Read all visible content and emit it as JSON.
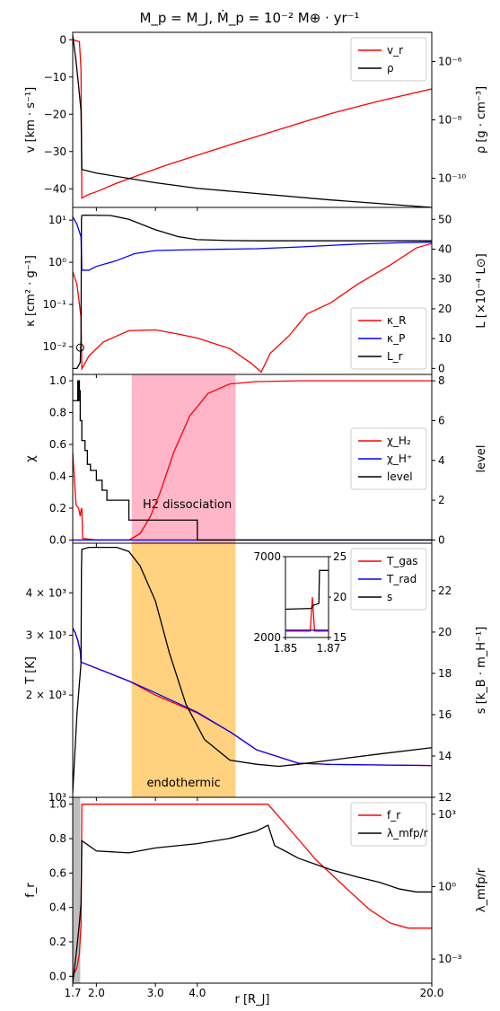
{
  "figure": {
    "title": "M_p = M_J, Ṁ_p = 10⁻² M⊕ · yr⁻¹",
    "shared_xlabel": "r [R_J]",
    "x_ticks": [
      "1.7",
      "2.0",
      "3.0",
      "4.0",
      "20.0"
    ]
  },
  "chart_data": [
    {
      "type": "line",
      "panel": 1,
      "x_scale": "log",
      "xlim": [
        1.7,
        20.0
      ],
      "ylabel": "v [km · s⁻¹]",
      "ylim": [
        -45,
        2
      ],
      "y_ticks": [
        "0",
        "−10",
        "−20",
        "−30",
        "−40"
      ],
      "y2label": "ρ [g · cm⁻³]",
      "y2_scale": "log",
      "y2lim": [
        1e-11,
        1e-05
      ],
      "y2_ticks": [
        "10⁻⁶",
        "10⁻⁸",
        "10⁻¹⁰"
      ],
      "legend": "top-right",
      "series": [
        {
          "name": "v_r",
          "color": "#ff0000",
          "axis": "left",
          "x": [
            1.7,
            1.78,
            1.8,
            1.81,
            1.85,
            1.9,
            2.0,
            2.3,
            2.7,
            3.2,
            4.0,
            5.0,
            6.0,
            8.0,
            10.0,
            14.0,
            20.0
          ],
          "y": [
            0.0,
            -0.5,
            -8.0,
            -42.5,
            -42.0,
            -41.5,
            -40.8,
            -38.5,
            -36.2,
            -33.8,
            -31.0,
            -28.2,
            -26.0,
            -22.5,
            -19.8,
            -16.4,
            -13.2
          ]
        },
        {
          "name": "ρ",
          "color": "#000000",
          "axis": "right",
          "x": [
            1.7,
            1.74,
            1.77,
            1.8,
            1.805,
            1.81,
            2.0,
            3.0,
            4.0,
            6.0,
            10.0,
            20.0
          ],
          "y": [
            8e-06,
            1e-06,
            1.5e-07,
            2e-08,
            2e-09,
            2e-10,
            1.5e-10,
            7e-11,
            4.5e-11,
            3e-11,
            1.8e-11,
            1e-11
          ]
        }
      ]
    },
    {
      "type": "line",
      "panel": 2,
      "x_scale": "log",
      "xlim": [
        1.7,
        20.0
      ],
      "ylabel": "κ [cm² · g⁻¹]",
      "y_scale": "log",
      "ylim": [
        0.0022,
        20
      ],
      "y_ticks": [
        "10¹",
        "10⁰",
        "10⁻¹",
        "10⁻²"
      ],
      "y2label": "L [×10⁻⁴ L⊙]",
      "y2lim": [
        -2,
        54
      ],
      "y2_ticks": [
        "0",
        "10",
        "20",
        "30",
        "40",
        "50"
      ],
      "legend": "bottom-right",
      "series": [
        {
          "name": "κ_R",
          "color": "#ff0000",
          "axis": "left",
          "x": [
            1.7,
            1.75,
            1.8,
            1.81,
            1.9,
            2.1,
            2.5,
            3.0,
            3.5,
            4.0,
            5.0,
            5.8,
            6.2,
            6.6,
            7.5,
            8.5,
            10.0,
            12.0,
            15.0,
            18.0,
            20.0
          ],
          "y": [
            0.6,
            0.3,
            0.05,
            0.003,
            0.006,
            0.013,
            0.024,
            0.025,
            0.02,
            0.016,
            0.009,
            0.004,
            0.0025,
            0.007,
            0.018,
            0.06,
            0.11,
            0.3,
            0.85,
            2.2,
            2.8
          ]
        },
        {
          "name": "κ_P",
          "color": "#0000ff",
          "axis": "left",
          "x": [
            1.7,
            1.75,
            1.8,
            1.81,
            1.9,
            2.0,
            2.3,
            2.6,
            3.0,
            4.0,
            6.0,
            8.0,
            12.0,
            16.0,
            20.0
          ],
          "y": [
            12.0,
            8.0,
            4.0,
            0.65,
            0.65,
            0.8,
            1.1,
            1.6,
            1.9,
            2.0,
            2.1,
            2.3,
            2.7,
            2.9,
            3.0
          ]
        },
        {
          "name": "L_r",
          "color": "#000000",
          "axis": "right",
          "x": [
            1.7,
            1.75,
            1.79,
            1.8,
            1.805,
            1.81,
            1.85,
            2.2,
            2.5,
            3.0,
            3.5,
            4.0,
            5.0,
            6.0,
            10.0,
            20.0
          ],
          "y": [
            0.0,
            0.0,
            2.0,
            10.0,
            50.0,
            51.3,
            51.4,
            51.3,
            50.0,
            46.5,
            44.2,
            43.2,
            42.9,
            42.8,
            42.8,
            42.8
          ]
        }
      ],
      "marker": {
        "x": 1.79,
        "y": 0.0095,
        "shape": "open-circle"
      }
    },
    {
      "type": "line",
      "panel": 3,
      "x_scale": "log",
      "xlim": [
        1.7,
        20.0
      ],
      "ylabel": "χ",
      "ylim": [
        -0.02,
        1.04
      ],
      "y_ticks": [
        "0.0",
        "0.2",
        "0.4",
        "0.6",
        "0.8",
        "1.0"
      ],
      "y2label": "level",
      "y2lim": [
        -0.16,
        8.32
      ],
      "y2_ticks": [
        "0",
        "2",
        "4",
        "6",
        "8"
      ],
      "shaded_region": {
        "x_range": [
          2.55,
          5.2
        ],
        "color": "#ffb6c8",
        "label": "H2 dissociation"
      },
      "legend": "center-right",
      "series": [
        {
          "name": "χ_H₂",
          "color": "#ff0000",
          "axis": "left",
          "x": [
            1.7,
            1.74,
            1.77,
            1.79,
            1.8,
            1.81,
            1.82,
            2.0,
            2.5,
            2.7,
            2.9,
            3.1,
            3.4,
            3.8,
            4.3,
            5.0,
            6.0,
            8.0,
            20.0
          ],
          "y": [
            0.55,
            0.22,
            0.2,
            0.15,
            0.19,
            0.2,
            0.01,
            0.0,
            0.0,
            0.04,
            0.15,
            0.3,
            0.55,
            0.78,
            0.92,
            0.98,
            0.995,
            1.0,
            1.0
          ]
        },
        {
          "name": "χ_H⁺",
          "color": "#0000ff",
          "axis": "left",
          "x": [
            1.7,
            20.0
          ],
          "y": [
            0.0,
            0.0
          ]
        },
        {
          "name": "level",
          "color": "#000000",
          "axis": "right",
          "step": true,
          "x": [
            1.7,
            1.75,
            1.76,
            1.77,
            1.775,
            1.78,
            1.79,
            1.81,
            1.85,
            1.88,
            1.92,
            2.0,
            2.08,
            2.15,
            2.3,
            2.5,
            3.0,
            4.0,
            4.5,
            20.0
          ],
          "y": [
            7.0,
            7.0,
            8.0,
            7.0,
            8.0,
            7.5,
            6.0,
            5.0,
            4.5,
            3.8,
            3.5,
            3.0,
            2.5,
            2.0,
            2.0,
            1.0,
            1.0,
            0.0,
            0.0,
            0.0
          ]
        }
      ]
    },
    {
      "type": "line",
      "panel": 4,
      "x_scale": "log",
      "xlim": [
        1.7,
        20.0
      ],
      "ylabel": "T [K]",
      "y_scale": "log",
      "ylim": [
        1000,
        5600
      ],
      "y_ticks": [
        "4 × 10³",
        "3 × 10³",
        "2 × 10³",
        "10³"
      ],
      "y2label": "s [k_B · m_H⁻¹]",
      "y2lim": [
        12,
        24.3
      ],
      "y2_ticks": [
        "12",
        "14",
        "16",
        "18",
        "20",
        "22"
      ],
      "shaded_region": {
        "x_range": [
          2.55,
          5.2
        ],
        "color": "#ffd27f",
        "label": "endothermic"
      },
      "legend": "top-right",
      "series": [
        {
          "name": "T_gas",
          "color": "#ff0000",
          "axis": "left",
          "x": [
            1.7,
            1.73,
            1.76,
            1.79,
            1.8,
            2.0,
            2.5,
            3.0,
            4.0,
            5.0,
            6.0,
            8.0,
            10.0,
            14.0,
            20.0
          ],
          "y": [
            3150,
            3050,
            2900,
            2700,
            2500,
            2400,
            2200,
            2000,
            1770,
            1560,
            1380,
            1260,
            1250,
            1245,
            1240
          ]
        },
        {
          "name": "T_rad",
          "color": "#0000ff",
          "axis": "left",
          "x": [
            1.7,
            1.73,
            1.76,
            1.79,
            1.8,
            2.0,
            2.5,
            3.0,
            4.0,
            5.0,
            6.0,
            8.0,
            10.0,
            14.0,
            20.0
          ],
          "y": [
            3150,
            3050,
            2900,
            2700,
            2500,
            2400,
            2200,
            2030,
            1780,
            1560,
            1380,
            1260,
            1250,
            1245,
            1240
          ]
        },
        {
          "name": "s",
          "color": "#000000",
          "axis": "right",
          "x": [
            1.7,
            1.75,
            1.79,
            1.8,
            1.805,
            1.81,
            1.9,
            2.3,
            2.5,
            2.7,
            3.0,
            3.3,
            3.7,
            4.2,
            5.0,
            6.0,
            7.0,
            8.0,
            10.0,
            14.0,
            20.0
          ],
          "y": [
            12.2,
            16.0,
            18.0,
            18.5,
            23.0,
            24.0,
            24.1,
            24.1,
            23.9,
            23.2,
            21.5,
            19.0,
            16.5,
            14.8,
            13.8,
            13.6,
            13.5,
            13.6,
            13.8,
            14.1,
            14.4
          ]
        }
      ],
      "inset": {
        "xlim": [
          1.85,
          1.87
        ],
        "x_ticks": [
          "1.85",
          "1.87"
        ],
        "ylim": [
          2000,
          7000
        ],
        "y_ticks": [
          "7000",
          "2000"
        ],
        "y2lim": [
          15,
          25
        ],
        "y2_ticks": [
          "25",
          "20",
          "15"
        ],
        "series": [
          {
            "name": "T_gas",
            "color": "#ff0000",
            "x": [
              1.85,
              1.8615,
              1.8625,
              1.8635,
              1.87
            ],
            "y": [
              2400,
              2400,
              4500,
              2400,
              2400
            ]
          },
          {
            "name": "T_rad",
            "color": "#0000ff",
            "x": [
              1.85,
              1.87
            ],
            "y": [
              2450,
              2450
            ]
          },
          {
            "name": "s",
            "color": "#000000",
            "x": [
              1.85,
              1.862,
              1.863,
              1.8655,
              1.8658,
              1.87
            ],
            "y": [
              18.5,
              18.6,
              19.0,
              19.2,
              23.3,
              23.3
            ]
          }
        ]
      }
    },
    {
      "type": "line",
      "panel": 5,
      "x_scale": "log",
      "xlim": [
        1.7,
        20.0
      ],
      "xlabel": "r [R_J]",
      "ylabel": "f_r",
      "ylim": [
        -0.04,
        1.04
      ],
      "y_ticks": [
        "0.0",
        "0.2",
        "0.4",
        "0.6",
        "0.8",
        "1.0"
      ],
      "y2label": "λ_mfp/r",
      "y2_scale": "log",
      "y2lim": [
        0.0001,
        5000.0
      ],
      "y2_ticks": [
        "10³",
        "10⁰",
        "10⁻³"
      ],
      "shaded_region": {
        "x_range": [
          1.7,
          1.79
        ],
        "color": "#bdbdbd"
      },
      "legend": "top-right",
      "series": [
        {
          "name": "f_r",
          "color": "#ff0000",
          "axis": "left",
          "x": [
            1.7,
            1.75,
            1.78,
            1.8,
            1.81,
            2.0,
            4.0,
            6.5,
            6.7,
            7.5,
            9.0,
            11.0,
            13.0,
            15.0,
            17.0,
            20.0
          ],
          "y": [
            0.0,
            0.05,
            0.13,
            0.3,
            1.0,
            1.0,
            1.0,
            1.0,
            0.97,
            0.86,
            0.68,
            0.52,
            0.39,
            0.31,
            0.28,
            0.28
          ]
        },
        {
          "name": "λ_mfp/r",
          "color": "#000000",
          "axis": "right",
          "x": [
            1.7,
            1.75,
            1.78,
            1.8,
            1.81,
            2.0,
            2.5,
            3.0,
            4.0,
            5.0,
            6.0,
            6.5,
            6.8,
            7.3,
            8.0,
            10.0,
            12.0,
            14.0,
            16.0,
            18.0,
            20.0
          ],
          "y": [
            0.0001,
            0.003,
            0.03,
            0.2,
            80,
            30,
            25,
            40,
            60,
            100,
            200,
            350,
            50,
            30,
            15,
            5,
            2.5,
            1.5,
            0.8,
            0.6,
            0.6
          ]
        }
      ]
    }
  ]
}
